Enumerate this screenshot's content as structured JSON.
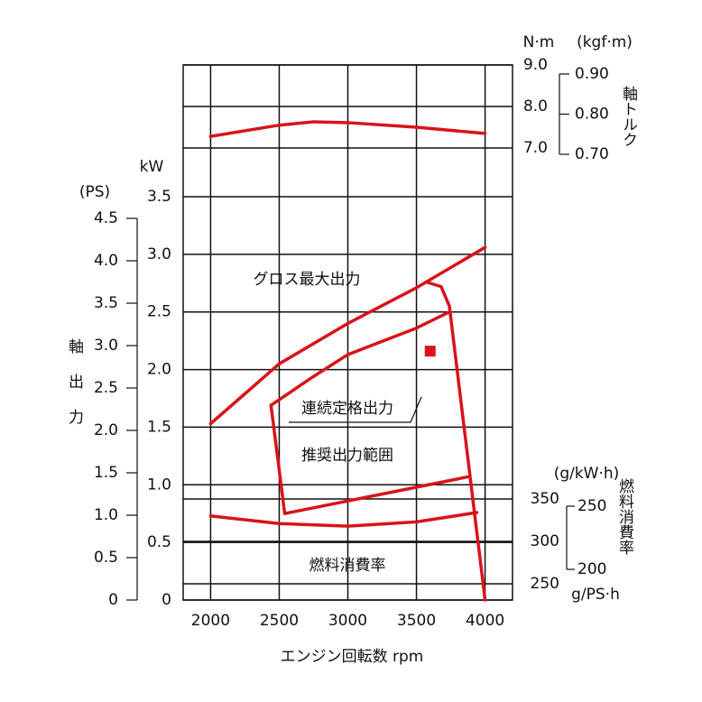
{
  "chart_data": {
    "type": "line",
    "x_label": "エンジン回転数 rpm",
    "xlim": [
      1800,
      4200
    ],
    "xticks": [
      2000,
      2500,
      3000,
      3500,
      4000
    ],
    "grid": true,
    "axes": {
      "kw": {
        "title": "kW",
        "lim": [
          0,
          3.5
        ],
        "ticks": [
          0,
          0.5,
          {
            "value": 1,
            "label": "1.0"
          },
          1.5,
          {
            "value": 2,
            "label": "2.0"
          },
          2.5,
          {
            "value": 3,
            "label": "3.0"
          },
          3.5
        ]
      },
      "ps": {
        "title": "(PS)",
        "lim": [
          0,
          4.5
        ],
        "ticks": [
          0,
          0.5,
          {
            "value": 1,
            "label": "1.0"
          },
          1.5,
          {
            "value": 2,
            "label": "2.0"
          },
          2.5,
          {
            "value": 3,
            "label": "3.0"
          },
          3.5,
          {
            "value": 4,
            "label": "4.0"
          },
          4.5
        ]
      },
      "nm": {
        "title": "N·m",
        "lim": [
          7,
          9
        ],
        "ticks": [
          {
            "value": 7,
            "label": "7.0"
          },
          {
            "value": 8,
            "label": "8.0"
          },
          {
            "value": 9,
            "label": "9.0"
          }
        ]
      },
      "kgfm": {
        "title": "(kgf·m)",
        "lim": [
          0.7,
          0.9
        ],
        "ticks": [
          {
            "value": 0.7,
            "label": "0.70"
          },
          {
            "value": 0.8,
            "label": "0.80"
          },
          {
            "value": 0.9,
            "label": "0.90"
          }
        ]
      },
      "gkwh": {
        "title": "(g/kW·h)",
        "lim": [
          250,
          350
        ],
        "ticks": [
          250,
          300,
          350
        ]
      },
      "gpsh": {
        "title": "g/PS·h",
        "lim": [
          200,
          250
        ],
        "ticks": [
          200,
          250
        ]
      }
    },
    "power_label": "軸出力",
    "torque_label": "軸トルク",
    "fuel_label": "燃料消費率",
    "series": [
      {
        "label": "グロス最大出力",
        "axis": "kw",
        "color": "#d7141a",
        "x": [
          2000,
          2500,
          3000,
          3500,
          4000
        ],
        "values": [
          1.53,
          2.05,
          2.4,
          2.71,
          3.06
        ]
      },
      {
        "label": "連続定格出力",
        "axis": "kw",
        "color": "#d7141a",
        "x": [
          2440,
          2750,
          3000,
          3500,
          3740
        ],
        "values": [
          1.69,
          1.94,
          2.13,
          2.36,
          2.5
        ]
      },
      {
        "label": "推奨出力範囲",
        "axis": "kw",
        "color": "#d7141a",
        "x": [
          2440,
          2540,
          3880
        ],
        "values": [
          1.69,
          0.75,
          1.07
        ]
      },
      {
        "axis": "kw",
        "color": "#d7141a",
        "x": [
          3570,
          3680,
          3740,
          4000
        ],
        "values": [
          2.76,
          2.72,
          2.55,
          0
        ]
      },
      {
        "axis": "nm",
        "color": "#d7141a",
        "x": [
          2000,
          2500,
          2750,
          3000,
          3500,
          4000
        ],
        "values": [
          7.28,
          7.55,
          7.63,
          7.61,
          7.5,
          7.35
        ]
      },
      {
        "label": "燃料消費率",
        "axis": "gkwh",
        "color": "#d7141a",
        "x": [
          2000,
          2500,
          3000,
          3500,
          3940
        ],
        "values": [
          330,
          321,
          318,
          323,
          334
        ]
      }
    ],
    "marker": {
      "axis": "kw",
      "x": 3600,
      "y": 2.16,
      "color": "#d7141a"
    }
  }
}
